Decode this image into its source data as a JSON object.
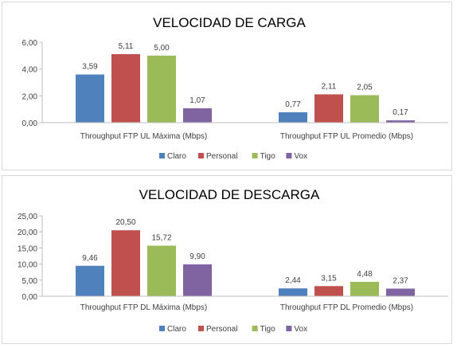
{
  "chart_data": [
    {
      "type": "bar",
      "title": "VELOCIDAD DE CARGA",
      "categories": [
        "Throughput FTP UL Máxima (Mbps)",
        "Throughput FTP UL Promedio (Mbps)"
      ],
      "series": [
        {
          "name": "Claro",
          "color": "#4f81bd",
          "values": [
            3.59,
            0.77
          ],
          "labels": [
            "3,59",
            "0,77"
          ]
        },
        {
          "name": "Personal",
          "color": "#c0504d",
          "values": [
            5.11,
            2.11
          ],
          "labels": [
            "5,11",
            "2,11"
          ]
        },
        {
          "name": "Tigo",
          "color": "#9bbb59",
          "values": [
            5.0,
            2.05
          ],
          "labels": [
            "5,00",
            "2,05"
          ]
        },
        {
          "name": "Vox",
          "color": "#8064a2",
          "values": [
            1.07,
            0.17
          ],
          "labels": [
            "1,07",
            "0,17"
          ]
        }
      ],
      "ylim": [
        0,
        6
      ],
      "yticks": [
        0,
        2,
        4,
        6
      ],
      "ytick_labels": [
        "0,00",
        "2,00",
        "4,00",
        "6,00"
      ],
      "grid": false,
      "legend": "bottom"
    },
    {
      "type": "bar",
      "title": "VELOCIDAD DE DESCARGA",
      "categories": [
        "Throughput FTP DL Máxima (Mbps)",
        "Throughput FTP DL Promedio (Mbps)"
      ],
      "series": [
        {
          "name": "Claro",
          "color": "#4f81bd",
          "values": [
            9.46,
            2.44
          ],
          "labels": [
            "9,46",
            "2,44"
          ]
        },
        {
          "name": "Personal",
          "color": "#c0504d",
          "values": [
            20.5,
            3.15
          ],
          "labels": [
            "20,50",
            "3,15"
          ]
        },
        {
          "name": "Tigo",
          "color": "#9bbb59",
          "values": [
            15.72,
            4.48
          ],
          "labels": [
            "15,72",
            "4,48"
          ]
        },
        {
          "name": "Vox",
          "color": "#8064a2",
          "values": [
            9.9,
            2.37
          ],
          "labels": [
            "9,90",
            "2,37"
          ]
        }
      ],
      "ylim": [
        0,
        25
      ],
      "yticks": [
        0,
        5,
        10,
        15,
        20,
        25
      ],
      "ytick_labels": [
        "0,00",
        "5,00",
        "10,00",
        "15,00",
        "20,00",
        "25,00"
      ],
      "grid": false,
      "legend": "bottom"
    }
  ]
}
